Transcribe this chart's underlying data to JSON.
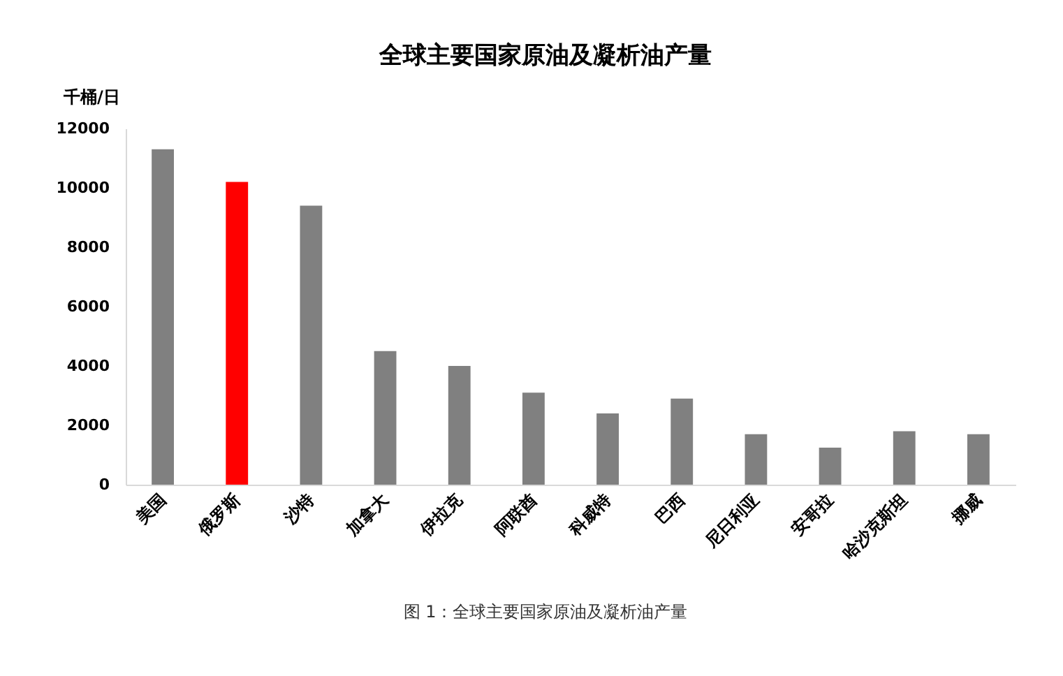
{
  "chart_data": {
    "type": "bar",
    "title": "全球主要国家原油及凝析油产量",
    "ylabel": "千桶/日",
    "categories": [
      "美国",
      "俄罗斯",
      "沙特",
      "加拿大",
      "伊拉克",
      "阿联酋",
      "科威特",
      "巴西",
      "尼日利亚",
      "安哥拉",
      "哈沙克斯坦",
      "挪威"
    ],
    "values": [
      11300,
      10200,
      9400,
      4500,
      4000,
      3100,
      2400,
      2900,
      1700,
      1250,
      1800,
      1700
    ],
    "colors": [
      "#808080",
      "#ff0000",
      "#808080",
      "#808080",
      "#808080",
      "#808080",
      "#808080",
      "#808080",
      "#808080",
      "#808080",
      "#808080",
      "#808080"
    ],
    "ylim": [
      0,
      12000
    ],
    "yticks": [
      0,
      2000,
      4000,
      6000,
      8000,
      10000,
      12000
    ],
    "grid": false,
    "legend": false,
    "annotations": [
      "图 1：全球主要国家原油及凝析油产量"
    ]
  }
}
